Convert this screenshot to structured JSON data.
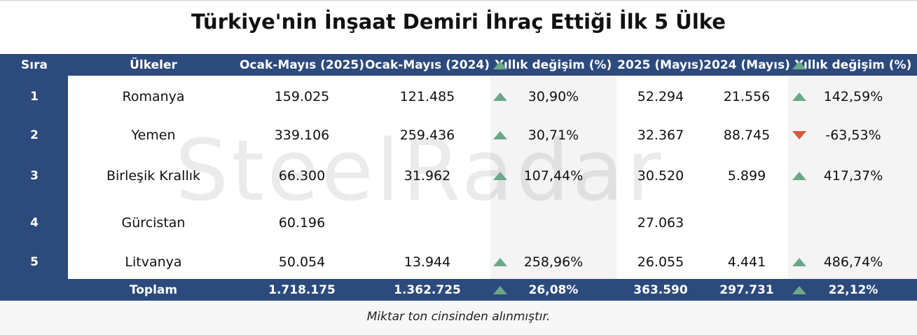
{
  "header": {
    "title": "Türkiye'nin İnşaat Demiri İhraç Ettiği İlk 5 Ülke"
  },
  "watermark": "SteelRadar",
  "table": {
    "columns": [
      "Sıra",
      "Ülkeler",
      "Ocak-Mayıs (2025)",
      "Ocak-Mayıs (2024)",
      "Yıllık değişim (%)",
      "2025 (Mayıs)",
      "2024 (Mayıs)",
      "Yıllık değişim (%)"
    ],
    "rows": [
      [
        "1",
        "Romanya",
        "159.025",
        "121.485",
        "30,90%",
        "52.294",
        "21.556",
        "142,59%"
      ],
      [
        "2",
        "Yemen",
        "339.106",
        "259.436",
        "30,71%",
        "32.367",
        "88.745",
        "-63,53%"
      ],
      [
        "3",
        "Birleşik Krallık",
        "66.300",
        "31.962",
        "107,44%",
        "30.520",
        "5.899",
        "417,37%"
      ],
      [
        "4",
        "Gürcistan",
        "60.196",
        null,
        null,
        "27.063",
        null,
        null
      ],
      [
        "5",
        "Litvanya",
        "50.054",
        "13.944",
        "258,96%",
        "26.055",
        "4.441",
        "486,74%"
      ]
    ],
    "total": [
      null,
      "Toplam",
      "1.718.175",
      "1.362.725",
      "26,08%",
      "363.590",
      "297.731",
      "22,12%"
    ]
  },
  "note": "Miktar  ton cinsinden alınmıştır."
}
